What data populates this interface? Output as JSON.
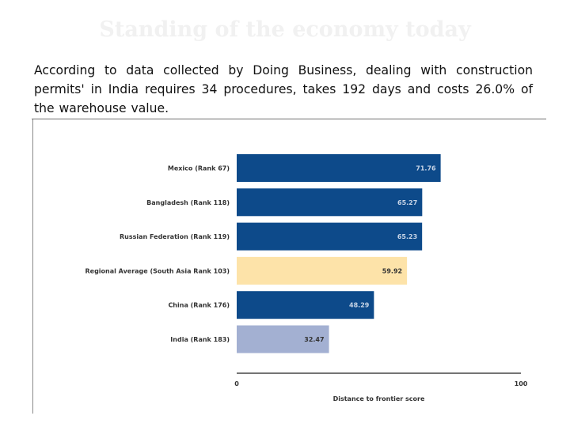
{
  "slide": {
    "title": "Standing of the economy today",
    "body": "According to data collected by Doing Business, dealing with construction permits' in India requires 34 procedures, takes 192 days and costs 26.0% of the warehouse value."
  },
  "colors": {
    "bar_primary": "#0d4a8a",
    "bar_regional": "#fde3a9",
    "bar_india": "#a3b0d2",
    "label_on_dark": "#c7d4e6",
    "label_on_light": "#333333",
    "title": "#f1f1f1"
  },
  "chart_data": {
    "type": "bar",
    "orientation": "horizontal",
    "title": "",
    "xlabel": "Distance to frontier score",
    "ylabel": "",
    "xlim": [
      0,
      100
    ],
    "xticks": [
      "0",
      "100"
    ],
    "categories": [
      "Mexico (Rank 67)",
      "Bangladesh (Rank 118)",
      "Russian Federation (Rank 119)",
      "Regional Average (South Asia Rank 103)",
      "China (Rank 176)",
      "India (Rank 183)"
    ],
    "values": [
      71.76,
      65.27,
      65.23,
      59.92,
      48.29,
      32.47
    ],
    "value_labels": [
      "71.76",
      "65.27",
      "65.23",
      "59.92",
      "48.29",
      "32.47"
    ],
    "bar_styles": [
      "primary",
      "primary",
      "primary",
      "regional",
      "primary",
      "india"
    ],
    "legend": "none",
    "grid": false
  }
}
